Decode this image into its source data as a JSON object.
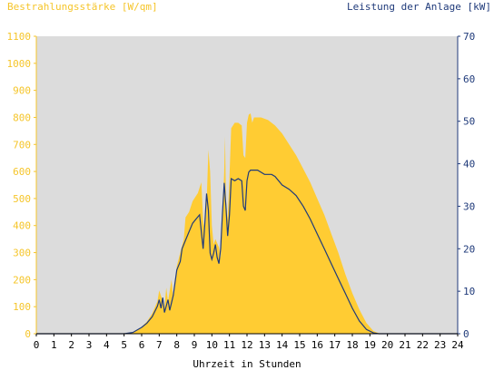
{
  "colors": {
    "irradiance": "#ffcc33",
    "power": "#1f3a7a",
    "plot_bg": "#dcdcdc",
    "left_axis": "#f5c52a",
    "right_axis": "#1f3a7a"
  },
  "chart_data": {
    "type": "area",
    "title_left": "Bestrahlungsstärke [W/qm]",
    "title_right": "Leistung der Anlage [kW]",
    "xlabel": "Uhrzeit in Stunden",
    "xlim": [
      0,
      24
    ],
    "x_ticks": [
      "0",
      "1",
      "2",
      "3",
      "4",
      "5",
      "6",
      "7",
      "8",
      "9",
      "10",
      "11",
      "12",
      "13",
      "14",
      "15",
      "16",
      "17",
      "18",
      "19",
      "20",
      "21",
      "22",
      "23",
      "24"
    ],
    "y_left": {
      "range": [
        0,
        1100
      ],
      "ticks": [
        "0",
        "100",
        "200",
        "300",
        "400",
        "500",
        "600",
        "700",
        "800",
        "900",
        "1000",
        "1100"
      ]
    },
    "y_right": {
      "range": [
        0,
        70
      ],
      "ticks": [
        "0",
        "10",
        "20",
        "30",
        "40",
        "50",
        "60",
        "70"
      ]
    },
    "grid": false,
    "series": [
      {
        "name": "Bestrahlungsstärke [W/qm]",
        "axis": "left",
        "style": "filled-area",
        "points": [
          [
            5.0,
            0
          ],
          [
            5.5,
            5
          ],
          [
            5.8,
            15
          ],
          [
            6.0,
            25
          ],
          [
            6.3,
            45
          ],
          [
            6.6,
            75
          ],
          [
            6.9,
            120
          ],
          [
            7.0,
            160
          ],
          [
            7.1,
            140
          ],
          [
            7.3,
            100
          ],
          [
            7.4,
            170
          ],
          [
            7.5,
            120
          ],
          [
            7.7,
            200
          ],
          [
            7.8,
            130
          ],
          [
            8.0,
            250
          ],
          [
            8.2,
            300
          ],
          [
            8.4,
            350
          ],
          [
            8.5,
            430
          ],
          [
            8.7,
            450
          ],
          [
            8.9,
            490
          ],
          [
            9.0,
            500
          ],
          [
            9.2,
            520
          ],
          [
            9.4,
            560
          ],
          [
            9.5,
            420
          ],
          [
            9.6,
            380
          ],
          [
            9.7,
            480
          ],
          [
            9.8,
            680
          ],
          [
            9.9,
            600
          ],
          [
            10.0,
            400
          ],
          [
            10.1,
            330
          ],
          [
            10.2,
            350
          ],
          [
            10.4,
            320
          ],
          [
            10.5,
            280
          ],
          [
            10.6,
            420
          ],
          [
            10.7,
            600
          ],
          [
            10.75,
            730
          ],
          [
            10.8,
            500
          ],
          [
            10.9,
            420
          ],
          [
            11.0,
            580
          ],
          [
            11.1,
            760
          ],
          [
            11.3,
            780
          ],
          [
            11.5,
            780
          ],
          [
            11.7,
            770
          ],
          [
            11.8,
            660
          ],
          [
            11.9,
            650
          ],
          [
            12.0,
            780
          ],
          [
            12.1,
            810
          ],
          [
            12.2,
            815
          ],
          [
            12.3,
            780
          ],
          [
            12.4,
            800
          ],
          [
            12.8,
            800
          ],
          [
            13.2,
            790
          ],
          [
            13.6,
            770
          ],
          [
            14.0,
            740
          ],
          [
            14.4,
            700
          ],
          [
            14.8,
            660
          ],
          [
            15.2,
            610
          ],
          [
            15.6,
            560
          ],
          [
            16.0,
            500
          ],
          [
            16.4,
            440
          ],
          [
            16.8,
            370
          ],
          [
            17.2,
            300
          ],
          [
            17.6,
            220
          ],
          [
            18.0,
            150
          ],
          [
            18.4,
            90
          ],
          [
            18.8,
            40
          ],
          [
            19.2,
            10
          ],
          [
            19.5,
            2
          ],
          [
            19.7,
            0
          ]
        ]
      },
      {
        "name": "Leistung der Anlage [kW]",
        "axis": "right",
        "style": "line",
        "points": [
          [
            5.0,
            0
          ],
          [
            5.5,
            0.3
          ],
          [
            6.0,
            1.5
          ],
          [
            6.3,
            2.5
          ],
          [
            6.6,
            4
          ],
          [
            6.9,
            6.5
          ],
          [
            7.0,
            8
          ],
          [
            7.1,
            6
          ],
          [
            7.2,
            8.5
          ],
          [
            7.3,
            5
          ],
          [
            7.5,
            8
          ],
          [
            7.6,
            5.5
          ],
          [
            7.8,
            9
          ],
          [
            8.0,
            15
          ],
          [
            8.2,
            17
          ],
          [
            8.3,
            20
          ],
          [
            8.5,
            22
          ],
          [
            8.7,
            24
          ],
          [
            8.9,
            26
          ],
          [
            9.1,
            27
          ],
          [
            9.3,
            28
          ],
          [
            9.4,
            24
          ],
          [
            9.5,
            20
          ],
          [
            9.6,
            26
          ],
          [
            9.7,
            33
          ],
          [
            9.8,
            29
          ],
          [
            9.9,
            19
          ],
          [
            10.0,
            17.5
          ],
          [
            10.1,
            19
          ],
          [
            10.2,
            21
          ],
          [
            10.3,
            18
          ],
          [
            10.4,
            16.5
          ],
          [
            10.5,
            20
          ],
          [
            10.6,
            28
          ],
          [
            10.7,
            35.5
          ],
          [
            10.8,
            30
          ],
          [
            10.9,
            23
          ],
          [
            11.0,
            28
          ],
          [
            11.1,
            36.5
          ],
          [
            11.3,
            36
          ],
          [
            11.5,
            36.5
          ],
          [
            11.7,
            36
          ],
          [
            11.8,
            30
          ],
          [
            11.9,
            29
          ],
          [
            12.0,
            36
          ],
          [
            12.1,
            38
          ],
          [
            12.2,
            38.5
          ],
          [
            12.6,
            38.5
          ],
          [
            13.0,
            37.5
          ],
          [
            13.4,
            37.5
          ],
          [
            13.6,
            37
          ],
          [
            14.0,
            35
          ],
          [
            14.4,
            34
          ],
          [
            14.8,
            32.5
          ],
          [
            15.2,
            30
          ],
          [
            15.6,
            27
          ],
          [
            16.0,
            23.5
          ],
          [
            16.4,
            20
          ],
          [
            16.8,
            16.5
          ],
          [
            17.2,
            13
          ],
          [
            17.6,
            9.5
          ],
          [
            18.0,
            6
          ],
          [
            18.4,
            3
          ],
          [
            18.8,
            1
          ],
          [
            19.2,
            0.2
          ],
          [
            19.5,
            0
          ]
        ]
      }
    ]
  }
}
